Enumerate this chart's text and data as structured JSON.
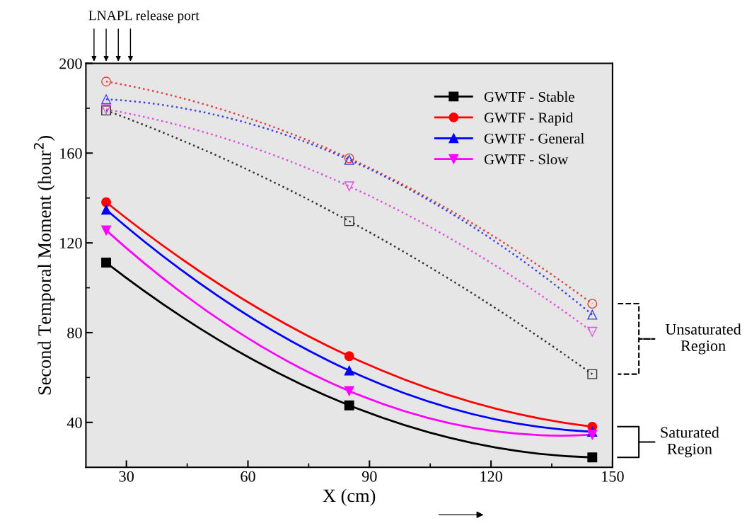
{
  "chart_data": {
    "type": "line",
    "xlabel": "X (cm)",
    "ylabel": "Second Temporal Moment (hour$^{2}$)",
    "x": [
      25,
      85,
      145
    ],
    "series": [
      {
        "name": "GWTF - Stable",
        "color": "#000000",
        "marker": "square",
        "line_style": "solid",
        "values": [
          111.2,
          47.6,
          24.4
        ]
      },
      {
        "name": "GWTF - Rapid",
        "color": "#ff0000",
        "marker": "circle",
        "line_style": "solid",
        "values": [
          138.1,
          69.5,
          38.1
        ]
      },
      {
        "name": "GWTF - General",
        "color": "#0000ff",
        "marker": "triangle",
        "line_style": "solid",
        "values": [
          134.8,
          63.1,
          35.8
        ]
      },
      {
        "name": "GWTF - Slow",
        "color": "#ff00ff",
        "marker": "triangle_down",
        "line_style": "solid",
        "values": [
          125.6,
          54,
          34.5
        ]
      },
      {
        "color": "#333333",
        "marker": "square",
        "line_style": "dotted",
        "values": [
          179,
          129.7,
          61.5
        ]
      },
      {
        "color": "#e04040",
        "marker": "circle",
        "line_style": "dotted",
        "values": [
          191.9,
          157.7,
          92.9
        ]
      },
      {
        "color": "#4040e0",
        "marker": "triangle",
        "line_style": "dotted",
        "values": [
          184,
          157,
          88
        ]
      },
      {
        "color": "#e050e0",
        "marker": "triangle_down",
        "line_style": "dotted",
        "values": [
          179.5,
          145.2,
          80.4
        ]
      }
    ],
    "xlim": [
      20,
      150
    ],
    "xticks": [
      30,
      60,
      90,
      120,
      150
    ],
    "ylim": [
      20,
      200
    ],
    "yticks": [
      40,
      80,
      120,
      160,
      200
    ],
    "grid": false,
    "legend": "top right",
    "annotations": [
      "LNAPL release port",
      "Unsaturated\nRegion",
      "Saturated\nRegion"
    ]
  }
}
